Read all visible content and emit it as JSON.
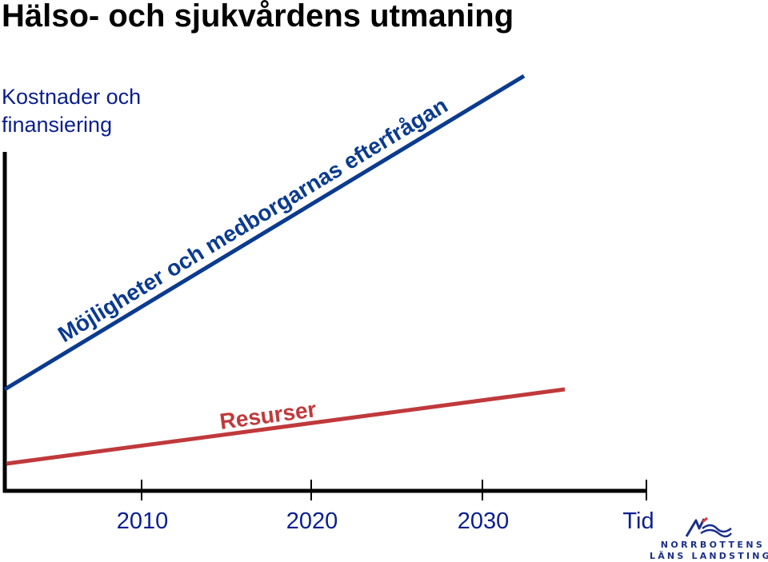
{
  "title": "Hälso- och sjukvårdens utmaning",
  "chart_data": {
    "type": "line",
    "ylabel_lines": [
      "Kostnader och",
      "finansiering"
    ],
    "xlabel": "Tid",
    "x_ticks": [
      "2010",
      "2020",
      "2030"
    ],
    "series": [
      {
        "name": "Möjligheter och medborgarnas efterfrågan",
        "color": "#0b3b8f"
      },
      {
        "name": "Resurser",
        "color": "#c0393b"
      }
    ],
    "grid": false,
    "legend": "none"
  },
  "logo": {
    "line1": "NORRBOTTENS",
    "line2": "LÄNS LANDSTING",
    "color": "#1a2f8a",
    "accent": "#d93636"
  }
}
